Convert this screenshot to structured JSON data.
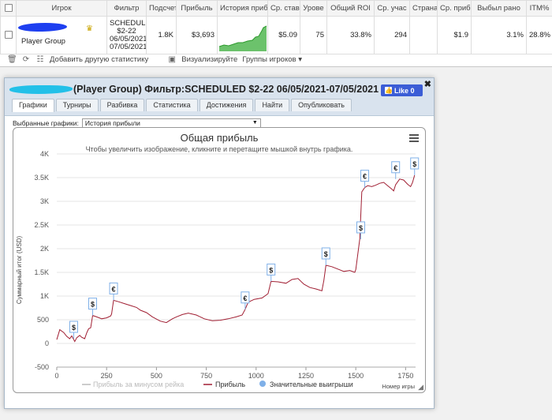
{
  "table": {
    "headers": [
      "Игрок",
      "Фильтр",
      "Подсчет",
      "Прибыль",
      "История прибы",
      "Ср. ставі",
      "Урове",
      "Общий ROI",
      "Ср. учас",
      "Страна",
      "Ср. приб",
      "Выбыл рано",
      "ITM%"
    ],
    "row": {
      "player": "Player Group",
      "filter": [
        "SCHEDULED",
        "$2-22",
        "06/05/2021-",
        "07/05/2021"
      ],
      "count": "1.8K",
      "profit": "$3,693",
      "avg_stake": "$5.09",
      "level": "75",
      "roi": "33.8%",
      "avg_field": "294",
      "country": "",
      "avg_profit": "$1.9",
      "early_out": "3.1%",
      "itm": "28.8%"
    }
  },
  "toolbar": {
    "add_stats": "Добавить другую статистику",
    "visualize": "Визуализируйте",
    "groups": "Группы игроков"
  },
  "dialog": {
    "title": "(Player Group) Фильтр:SCHEDULED $2-22 06/05/2021-07/05/2021",
    "like": "Like 0",
    "tabs": [
      "Графики",
      "Турниры",
      "Разбивка",
      "Статистика",
      "Достижения",
      "Найти",
      "Опубликовать"
    ],
    "select_label": "Выбранные графики:",
    "select_value": "История прибыли"
  },
  "chart_data": {
    "type": "line",
    "title": "Общая прибыль",
    "subtitle": "Чтобы увеличить изображение, кликните и перетащите мышкой внутрь графика.",
    "xlabel": "Номер игры",
    "ylabel": "Суммарный итог (USD)",
    "xlim": [
      0,
      1800
    ],
    "ylim": [
      -500,
      4000
    ],
    "xticks": [
      "0",
      "250",
      "500",
      "750",
      "1000",
      "1250",
      "1500",
      "1750"
    ],
    "yticks": [
      "-500",
      "0",
      "500",
      "1K",
      "1.5K",
      "2K",
      "2.5K",
      "3K",
      "3.5K",
      "4K"
    ],
    "grid": true,
    "legend_position": "bottom",
    "legend": [
      "Прибыль за минусом рейка",
      "Прибыль",
      "Значительные выигрыши"
    ],
    "series": [
      {
        "name": "Прибыль",
        "color": "#a01e32",
        "points": [
          [
            0,
            80
          ],
          [
            15,
            290
          ],
          [
            35,
            230
          ],
          [
            50,
            150
          ],
          [
            65,
            100
          ],
          [
            75,
            160
          ],
          [
            90,
            40
          ],
          [
            100,
            120
          ],
          [
            115,
            170
          ],
          [
            125,
            130
          ],
          [
            140,
            100
          ],
          [
            150,
            220
          ],
          [
            160,
            310
          ],
          [
            170,
            330
          ],
          [
            180,
            590
          ],
          [
            200,
            560
          ],
          [
            225,
            520
          ],
          [
            250,
            540
          ],
          [
            270,
            580
          ],
          [
            275,
            620
          ],
          [
            285,
            910
          ],
          [
            310,
            880
          ],
          [
            340,
            840
          ],
          [
            370,
            800
          ],
          [
            400,
            760
          ],
          [
            420,
            700
          ],
          [
            450,
            650
          ],
          [
            480,
            560
          ],
          [
            520,
            470
          ],
          [
            550,
            440
          ],
          [
            580,
            520
          ],
          [
            600,
            560
          ],
          [
            630,
            610
          ],
          [
            660,
            640
          ],
          [
            700,
            600
          ],
          [
            740,
            520
          ],
          [
            780,
            480
          ],
          [
            820,
            490
          ],
          [
            860,
            520
          ],
          [
            900,
            560
          ],
          [
            930,
            600
          ],
          [
            945,
            720
          ],
          [
            960,
            870
          ],
          [
            990,
            930
          ],
          [
            1030,
            960
          ],
          [
            1060,
            1050
          ],
          [
            1075,
            1310
          ],
          [
            1110,
            1300
          ],
          [
            1150,
            1270
          ],
          [
            1180,
            1350
          ],
          [
            1210,
            1370
          ],
          [
            1240,
            1250
          ],
          [
            1270,
            1180
          ],
          [
            1300,
            1150
          ],
          [
            1330,
            1110
          ],
          [
            1340,
            1330
          ],
          [
            1350,
            1650
          ],
          [
            1380,
            1620
          ],
          [
            1410,
            1570
          ],
          [
            1440,
            1520
          ],
          [
            1470,
            1540
          ],
          [
            1495,
            1500
          ],
          [
            1500,
            1560
          ],
          [
            1520,
            2200
          ],
          [
            1530,
            3200
          ],
          [
            1545,
            3290
          ],
          [
            1560,
            3330
          ],
          [
            1580,
            3310
          ],
          [
            1600,
            3340
          ],
          [
            1620,
            3380
          ],
          [
            1640,
            3400
          ],
          [
            1660,
            3330
          ],
          [
            1680,
            3260
          ],
          [
            1690,
            3220
          ],
          [
            1700,
            3350
          ],
          [
            1720,
            3470
          ],
          [
            1740,
            3450
          ],
          [
            1760,
            3360
          ],
          [
            1775,
            3310
          ],
          [
            1785,
            3400
          ],
          [
            1795,
            3550
          ]
        ]
      }
    ],
    "big_wins": [
      {
        "x": 85,
        "y": 100,
        "symbol": "$"
      },
      {
        "x": 180,
        "y": 590,
        "symbol": "$"
      },
      {
        "x": 285,
        "y": 910,
        "symbol": "€"
      },
      {
        "x": 945,
        "y": 720,
        "symbol": "€"
      },
      {
        "x": 1075,
        "y": 1310,
        "symbol": "$"
      },
      {
        "x": 1350,
        "y": 1650,
        "symbol": "$"
      },
      {
        "x": 1525,
        "y": 2200,
        "symbol": "$"
      },
      {
        "x": 1545,
        "y": 3290,
        "symbol": "€"
      },
      {
        "x": 1700,
        "y": 3470,
        "symbol": "€"
      },
      {
        "x": 1795,
        "y": 3550,
        "symbol": "$"
      }
    ]
  }
}
